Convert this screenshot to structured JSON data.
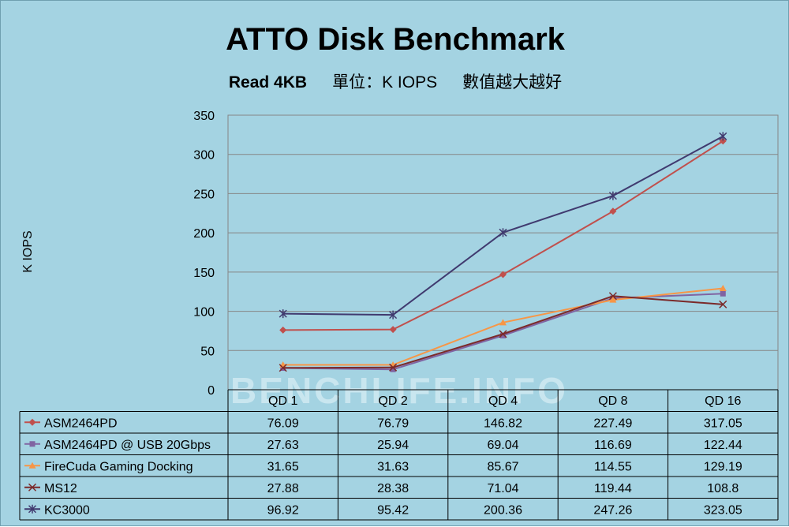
{
  "chart_data": {
    "type": "line",
    "title": "ATTO Disk Benchmark",
    "subtitle_parts": [
      "Read 4KB",
      "單位：K IOPS",
      "數值越大越好"
    ],
    "ylabel": "K IOPS",
    "xlabel": "",
    "categories": [
      "QD 1",
      "QD 2",
      "QD 4",
      "QD 8",
      "QD 16"
    ],
    "y_ticks": [
      "0",
      "50",
      "100",
      "150",
      "200",
      "250",
      "300",
      "350"
    ],
    "ylim": [
      0,
      350
    ],
    "grid": true,
    "legend": "data-table",
    "watermark": "BENCHLIFE.INFO",
    "series": [
      {
        "name": "ASM2464PD",
        "values": [
          "76.09",
          "76.79",
          "146.82",
          "227.49",
          "317.05"
        ],
        "color": "#c0504d",
        "marker": "diamond"
      },
      {
        "name": "ASM2464PD @ USB 20Gbps",
        "values": [
          "27.63",
          "25.94",
          "69.04",
          "116.69",
          "122.44"
        ],
        "color": "#8064a2",
        "marker": "square"
      },
      {
        "name": "FireCuda Gaming Docking",
        "values": [
          "31.65",
          "31.63",
          "85.67",
          "114.55",
          "129.19"
        ],
        "color": "#f79646",
        "marker": "triangle"
      },
      {
        "name": "MS12",
        "values": [
          "27.88",
          "28.38",
          "71.04",
          "119.44",
          "108.8"
        ],
        "color": "#7b2a2a",
        "marker": "x"
      },
      {
        "name": "KC3000",
        "values": [
          "96.92",
          "95.42",
          "200.36",
          "247.26",
          "323.05"
        ],
        "color": "#403a6f",
        "marker": "star"
      }
    ]
  }
}
